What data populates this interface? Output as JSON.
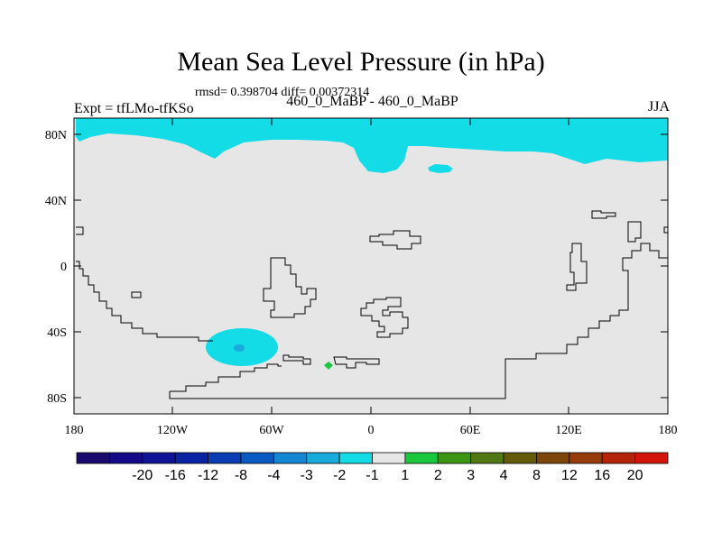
{
  "title": "Mean Sea Level Pressure (in hPa)",
  "stats": "rmsd= 0.398704 diff= 0.00372314",
  "experiment_label": "Expt = tfLMo-tfKSo",
  "comparison_label": "460_0_MaBP - 460_0_MaBP",
  "season_label": "JJA",
  "lat_ticks": [
    "80N",
    "40N",
    "0",
    "40S",
    "80S"
  ],
  "lon_ticks": [
    "180",
    "120W",
    "60W",
    "0",
    "60E",
    "120E",
    "180"
  ],
  "colorbar": {
    "labels": [
      "-20",
      "-16",
      "-12",
      "-8",
      "-4",
      "-3",
      "-2",
      "-1",
      "1",
      "2",
      "3",
      "4",
      "8",
      "12",
      "16",
      "20"
    ],
    "colors": [
      "#1a0a6e",
      "#140a87",
      "#0f1496",
      "#0a23a5",
      "#0a3cb4",
      "#0a5ac3",
      "#1487d2",
      "#19aadc",
      "#14dce6",
      "#e6e6e6",
      "#19c83c",
      "#3c9614",
      "#507814",
      "#645a0a",
      "#7d460a",
      "#963c0a",
      "#b4230a",
      "#d2140a"
    ]
  },
  "colors": {
    "land_background": "#e6e6e6",
    "neg_one_to_two": "#14dce6",
    "neg_two_to_three": "#19aadc",
    "pos_one_to_two": "#19c83c",
    "outline": "#000000"
  }
}
